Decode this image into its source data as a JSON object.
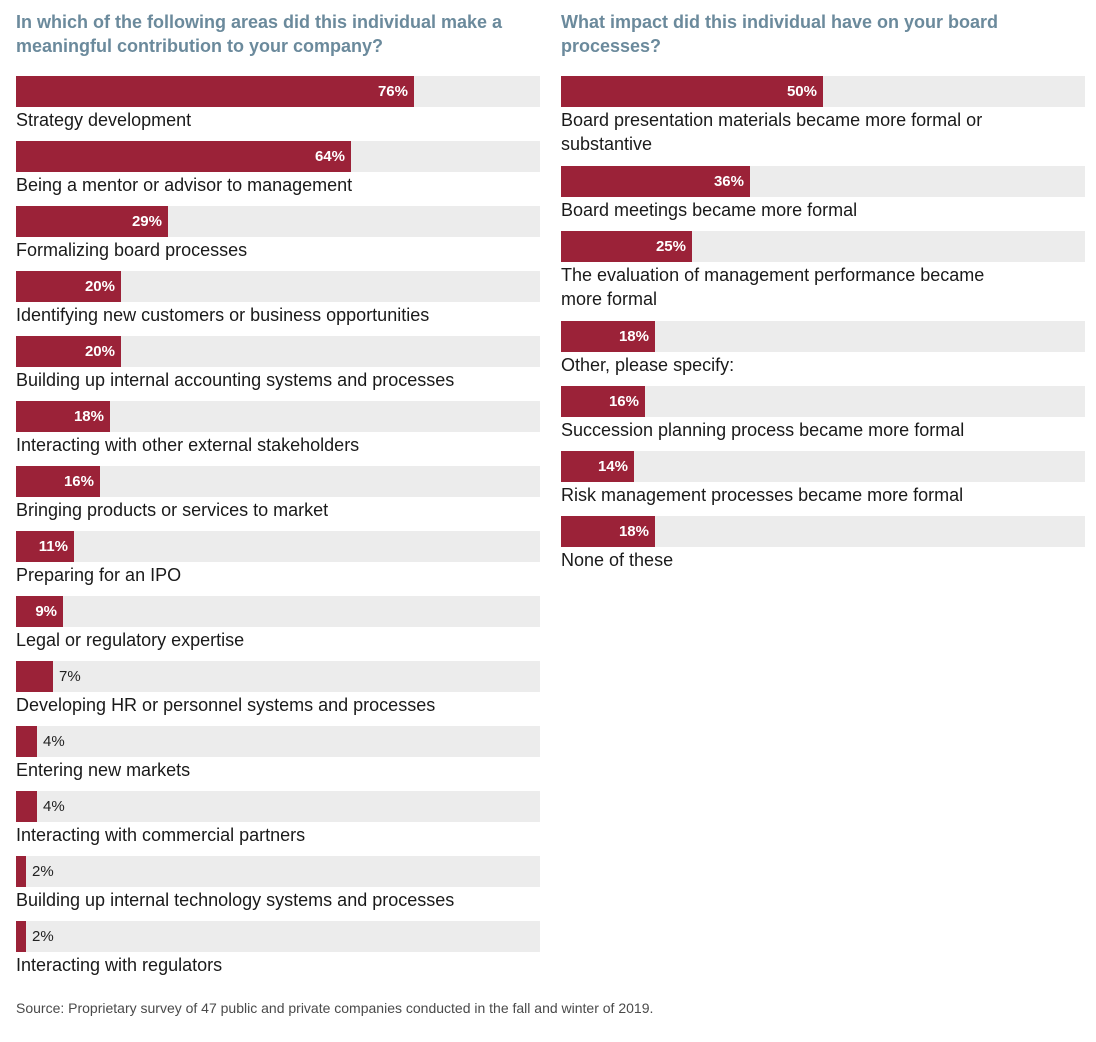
{
  "colors": {
    "bar": "#9b2238",
    "track": "#ececec",
    "title": "#6b8a9c"
  },
  "chart_data": [
    {
      "type": "bar",
      "orientation": "horizontal",
      "title": "In which of the following areas did this individual make a meaningful contribution to your company?",
      "xlim": [
        0,
        100
      ],
      "categories": [
        "Strategy development",
        "Being a mentor or advisor to management",
        "Formalizing board processes",
        "Identifying new customers or business opportunities",
        "Building up internal accounting systems and processes",
        "Interacting with other external stakeholders",
        "Bringing products or services to market",
        "Preparing for an IPO",
        "Legal or regulatory expertise",
        "Developing HR or personnel systems and processes",
        "Entering new markets",
        "Interacting with commercial partners",
        "Building up internal technology systems and processes",
        "Interacting with regulators"
      ],
      "values": [
        76,
        64,
        29,
        20,
        20,
        18,
        16,
        11,
        9,
        7,
        4,
        4,
        2,
        2
      ],
      "data_labels": [
        "76%",
        "64%",
        "29%",
        "20%",
        "20%",
        "18%",
        "16%",
        "11%",
        "9%",
        "7%",
        "4%",
        "4%",
        "2%",
        "2%"
      ]
    },
    {
      "type": "bar",
      "orientation": "horizontal",
      "title": "What impact did this individual have on your board processes?",
      "xlim": [
        0,
        100
      ],
      "categories": [
        "Board presentation materials became more formal or substantive",
        "Board meetings became more formal",
        "The evaluation of management performance became more formal",
        "Other, please specify:",
        "Succession planning process became more formal",
        "Risk management processes became more formal",
        "None of these"
      ],
      "values": [
        50,
        36,
        25,
        18,
        16,
        14,
        18
      ],
      "data_labels": [
        "50%",
        "36%",
        "25%",
        "18%",
        "16%",
        "14%",
        "18%"
      ]
    }
  ],
  "source": "Source: Proprietary survey of 47 public and private companies conducted in the fall and winter of 2019."
}
